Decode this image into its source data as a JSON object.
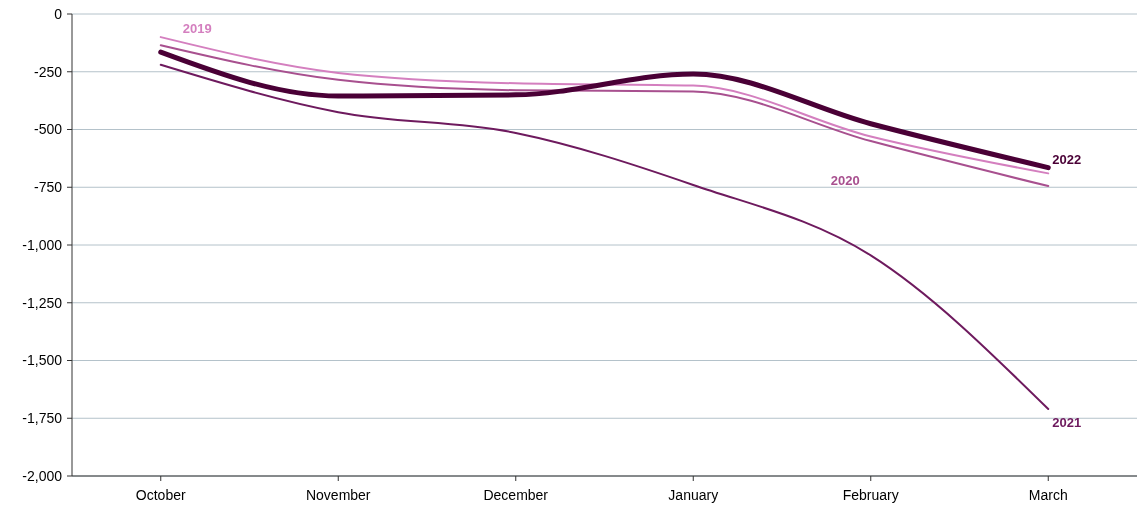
{
  "chart_data": {
    "type": "line",
    "categories": [
      "October",
      "November",
      "December",
      "January",
      "February",
      "March"
    ],
    "series": [
      {
        "name": "2019",
        "color": "#d47fbf",
        "values": [
          -100,
          -255,
          -300,
          -310,
          -530,
          -690
        ]
      },
      {
        "name": "2020",
        "color": "#a8508f",
        "values": [
          -135,
          -285,
          -330,
          -335,
          -550,
          -745
        ]
      },
      {
        "name": "2021",
        "color": "#6e1a5e",
        "values": [
          -220,
          -425,
          -515,
          -740,
          -1045,
          -1710
        ]
      },
      {
        "name": "2022",
        "color": "#4a0036",
        "values": [
          -165,
          -355,
          -350,
          -260,
          -475,
          -665
        ]
      }
    ],
    "ylim": [
      -2000,
      0
    ],
    "yticks": [
      {
        "value": 0,
        "label": "0"
      },
      {
        "value": -250,
        "label": "-250"
      },
      {
        "value": -500,
        "label": "-500"
      },
      {
        "value": -750,
        "label": "-750"
      },
      {
        "value": -1000,
        "label": "-1,000"
      },
      {
        "value": -1250,
        "label": "-1,250"
      },
      {
        "value": -1500,
        "label": "-1,500"
      },
      {
        "value": -1750,
        "label": "-1,750"
      },
      {
        "value": -2000,
        "label": "-2,000"
      }
    ],
    "grid": "y",
    "marker": "none",
    "line_style": "solid"
  }
}
